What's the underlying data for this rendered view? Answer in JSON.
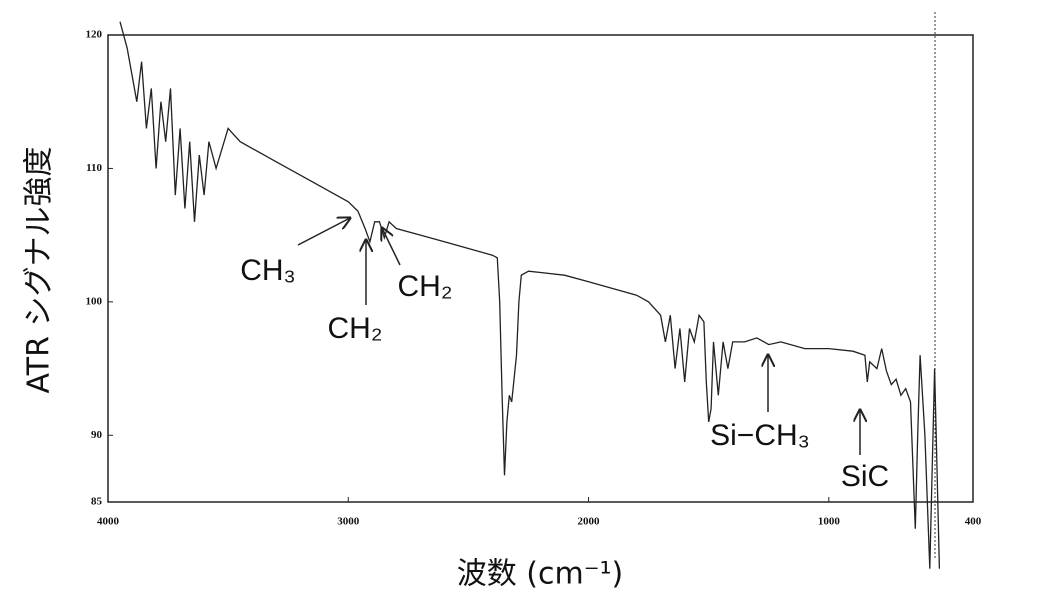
{
  "chart_data": {
    "type": "line",
    "xlabel": "波数 (cm⁻¹)",
    "ylabel": "ATR シグナル強度",
    "xlim": [
      4000,
      400
    ],
    "ylim": [
      85,
      120
    ],
    "xticks": [
      4000,
      3000,
      2000,
      1000,
      400
    ],
    "yticks": [
      85,
      90,
      100,
      110,
      120
    ],
    "annotations": [
      {
        "text": "CH₃"
      },
      {
        "text": "CH₂"
      },
      {
        "text": "CH₂"
      },
      {
        "text": "Si−CH₃"
      },
      {
        "text": "SiC"
      }
    ],
    "series": [
      {
        "color": "#222222",
        "x": [
          3950,
          3920,
          3900,
          3880,
          3860,
          3840,
          3820,
          3800,
          3780,
          3760,
          3740,
          3720,
          3700,
          3680,
          3660,
          3640,
          3620,
          3600,
          3580,
          3550,
          3500,
          3450,
          3400,
          3300,
          3200,
          3100,
          3000,
          2960,
          2930,
          2910,
          2890,
          2870,
          2850,
          2830,
          2800,
          2700,
          2600,
          2500,
          2400,
          2380,
          2370,
          2360,
          2350,
          2340,
          2330,
          2320,
          2300,
          2290,
          2280,
          2250,
          2200,
          2100,
          2000,
          1900,
          1800,
          1750,
          1700,
          1680,
          1660,
          1640,
          1620,
          1600,
          1580,
          1560,
          1540,
          1520,
          1510,
          1500,
          1490,
          1480,
          1460,
          1440,
          1420,
          1400,
          1350,
          1300,
          1250,
          1200,
          1100,
          1000,
          900,
          850,
          840,
          830,
          800,
          780,
          760,
          740,
          720,
          700,
          680,
          660,
          640,
          630,
          620,
          600,
          580,
          560,
          540
        ],
        "values": [
          121,
          119,
          117,
          115,
          118,
          113,
          116,
          110,
          115,
          112,
          116,
          108,
          113,
          107,
          112,
          106,
          111,
          108,
          112,
          110,
          113,
          112,
          111.5,
          110.5,
          109.5,
          108.5,
          107.5,
          106.8,
          105.5,
          104.5,
          106,
          106,
          104.8,
          106,
          105.5,
          105,
          104.5,
          104,
          103.5,
          103.3,
          100,
          93,
          87,
          91,
          93,
          92.5,
          96,
          100,
          102,
          102.3,
          102.2,
          102,
          101.5,
          101,
          100.5,
          100,
          99,
          97,
          99,
          95,
          98,
          94,
          98,
          97,
          99,
          98.5,
          94,
          91,
          92,
          97,
          93,
          97,
          95,
          97,
          97,
          97.3,
          96.8,
          97,
          96.5,
          96.5,
          96.3,
          96,
          94,
          95.5,
          95,
          96.5,
          94.8,
          93.8,
          94.2,
          93,
          93.5,
          92.5,
          83,
          90,
          96,
          90,
          80,
          95,
          80
        ]
      }
    ]
  }
}
